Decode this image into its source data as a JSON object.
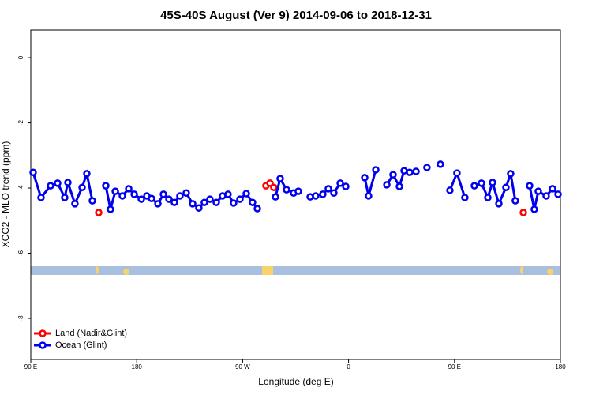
{
  "chart_data": {
    "type": "line",
    "title": "45S-40S August (Ver 9)   2014-09-06 to 2018-12-31",
    "x_label": "Longitude (deg E)",
    "y_label": "XCO2 - MLO trend (ppm)",
    "xlim": [
      90,
      540
    ],
    "ylim": [
      -9.26,
      0.85
    ],
    "xticks": [
      {
        "value": 90,
        "label": "90 E"
      },
      {
        "value": 180,
        "label": "180"
      },
      {
        "value": 270,
        "label": "90 W"
      },
      {
        "value": 360,
        "label": "0"
      },
      {
        "value": 450,
        "label": "90 E"
      },
      {
        "value": 540,
        "label": "180"
      }
    ],
    "yticks": [
      0,
      -2,
      -4,
      -6,
      -8
    ],
    "legend": "bottom-left",
    "series": [
      {
        "name": "Land (Nadir&Glint)",
        "color": "#ff0000",
        "x": [
          147.7,
          200,
          289.8,
          293.2,
          296.5,
          400,
          508.5
        ],
        "values": [
          -4.75,
          null,
          -3.93,
          -3.85,
          -3.98,
          null,
          -4.75
        ]
      },
      {
        "name": "Ocean (Glint)",
        "color": "#0000ee",
        "x": [
          92.0,
          98.7,
          106.8,
          112.8,
          118.8,
          121.5,
          127.5,
          133.6,
          137.6,
          142.3,
          146,
          153.7,
          157.7,
          161.8,
          167.8,
          173.2,
          177.9,
          183.9,
          188.6,
          192.6,
          198.0,
          202.7,
          207.4,
          212.0,
          216.7,
          222.1,
          227.5,
          232.8,
          237.5,
          242.2,
          247.6,
          252.9,
          257.6,
          262.3,
          267.7,
          273.1,
          278.4,
          282.5,
          290,
          297.9,
          301.9,
          307.3,
          313.3,
          317.3,
          322,
          327.4,
          332.1,
          338.1,
          342.8,
          347.5,
          352.9,
          357.6,
          365,
          373.7,
          377.0,
          383.1,
          388,
          392.5,
          397.8,
          403.2,
          407.2,
          411.9,
          417.3,
          420,
          426.6,
          432,
          438.0,
          442,
          446.1,
          452.1,
          458.8,
          462,
          466.9,
          472.9,
          478.3,
          482.3,
          487.7,
          493.7,
          497.7,
          501.7,
          505,
          513.8,
          517.8,
          521.2,
          527.9,
          533.3,
          538.0
        ],
        "values": [
          -3.52,
          -4.29,
          -3.93,
          -3.85,
          -4.29,
          -3.83,
          -4.48,
          -3.98,
          -3.56,
          -4.39,
          null,
          -3.93,
          -4.65,
          -4.1,
          -4.24,
          -4.02,
          -4.19,
          -4.34,
          -4.24,
          -4.32,
          -4.48,
          -4.19,
          -4.34,
          -4.44,
          -4.24,
          -4.15,
          -4.48,
          -4.61,
          -4.44,
          -4.34,
          -4.44,
          -4.24,
          -4.19,
          -4.46,
          -4.34,
          -4.17,
          -4.44,
          -4.63,
          null,
          -4.27,
          -3.71,
          -4.05,
          -4.15,
          -4.1,
          null,
          -4.27,
          -4.24,
          -4.19,
          -4.02,
          -4.15,
          -3.85,
          -3.95,
          null,
          -3.68,
          -4.24,
          -3.44,
          null,
          -3.9,
          -3.59,
          -3.95,
          -3.47,
          -3.52,
          -3.49,
          null,
          -3.37,
          null,
          -3.27,
          null,
          -4.07,
          -3.54,
          -4.29,
          null,
          -3.93,
          -3.85,
          -4.29,
          -3.83,
          -4.48,
          -3.98,
          -3.56,
          -4.39,
          null,
          -3.93,
          -4.65,
          -4.1,
          -4.24,
          -4.02,
          -4.19
        ]
      }
    ]
  }
}
